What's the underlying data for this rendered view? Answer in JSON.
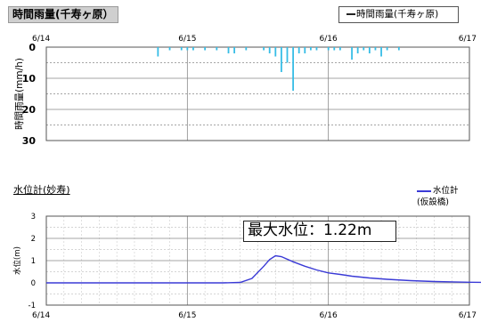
{
  "header": {
    "title": "時間雨量(千寿ヶ原）",
    "legend_label": "時間雨量(千寿ヶ原)"
  },
  "lower": {
    "title": "水位計(妙寿)",
    "legend_label": "水位計",
    "legend_sub": "(仮設橋)",
    "annotation": "最大水位：1.22m"
  },
  "chart_data": [
    {
      "type": "bar",
      "title": "時間雨量(千寿ヶ原）",
      "ylabel": "時間雨量(mm/h)",
      "ylim": [
        0,
        30
      ],
      "y_inverted": true,
      "x_ticks": [
        "6/14",
        "6/15",
        "6/16",
        "6/17"
      ],
      "yticks": [
        "0",
        "10",
        "20",
        "30"
      ],
      "x_unit": "hours since 6/14 00:00",
      "color": "#37bde6",
      "series": [
        {
          "name": "時間雨量(千寿ヶ原)",
          "x": [
            19,
            21,
            23,
            24,
            25,
            27,
            29,
            31,
            32,
            34,
            37,
            38,
            39,
            40,
            41,
            42,
            43,
            44,
            45,
            46,
            48,
            49,
            50,
            52,
            53,
            54,
            55,
            56,
            57,
            58,
            60
          ],
          "values": [
            3,
            1,
            1,
            1,
            1,
            1,
            1,
            2,
            2,
            1,
            1,
            2,
            3,
            8,
            5,
            14,
            2,
            2,
            1,
            1,
            1,
            1,
            1,
            4,
            2,
            1,
            2,
            1,
            3,
            1,
            1
          ]
        }
      ]
    },
    {
      "type": "line",
      "title": "水位計(妙寿)",
      "ylabel": "水位(m)",
      "ylim": [
        -1,
        3
      ],
      "y_ticks": [
        "-1",
        "0",
        "1",
        "2",
        "3"
      ],
      "x_ticks": [
        "6/14",
        "6/15",
        "6/16",
        "6/17"
      ],
      "x_unit": "hours since 6/14 00:00",
      "color": "#3a3ad6",
      "series": [
        {
          "name": "水位計",
          "x": [
            0,
            20,
            24,
            30,
            33,
            35,
            37,
            38,
            39,
            40,
            42,
            44,
            46,
            48,
            50,
            52,
            55,
            58,
            62,
            66,
            72,
            80,
            90,
            100,
            110,
            120,
            130,
            140,
            144
          ],
          "values": [
            0.0,
            0.0,
            0.0,
            0.0,
            0.02,
            0.2,
            0.75,
            1.05,
            1.22,
            1.18,
            0.95,
            0.75,
            0.58,
            0.45,
            0.38,
            0.3,
            0.22,
            0.16,
            0.1,
            0.06,
            0.03,
            0.01,
            0.0,
            0.0,
            0.0,
            0.0,
            0.0,
            0.0,
            0.0
          ]
        }
      ]
    }
  ]
}
